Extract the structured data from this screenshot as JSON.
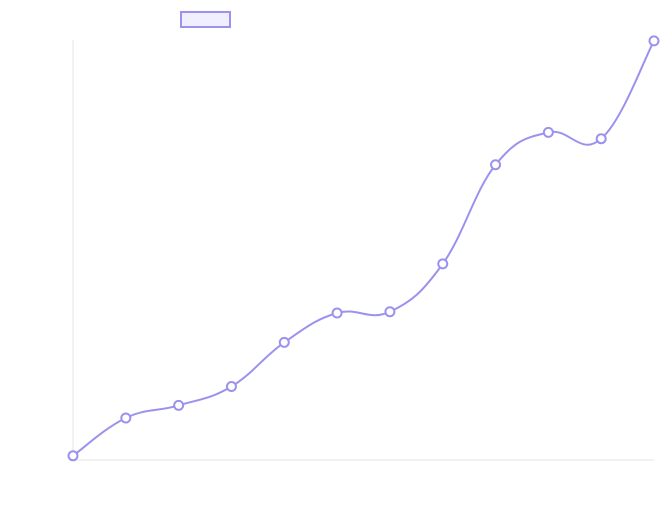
{
  "chart_data": {
    "type": "line",
    "title": "",
    "xlabel": "",
    "ylabel": "",
    "legend": {
      "position": "top",
      "label": ""
    },
    "grid": false,
    "series": [
      {
        "color": "#9b92ee",
        "fill": "#f1efff",
        "values": [
          1.0,
          10.0,
          13.0,
          17.5,
          28.0,
          35.0,
          35.3,
          46.7,
          70.3,
          78.0,
          76.5,
          99.8
        ]
      }
    ],
    "x": [
      1,
      2,
      3,
      4,
      5,
      6,
      7,
      8,
      9,
      10,
      11,
      12
    ],
    "xlim": [
      1,
      12
    ],
    "ylim": [
      0,
      100
    ]
  }
}
